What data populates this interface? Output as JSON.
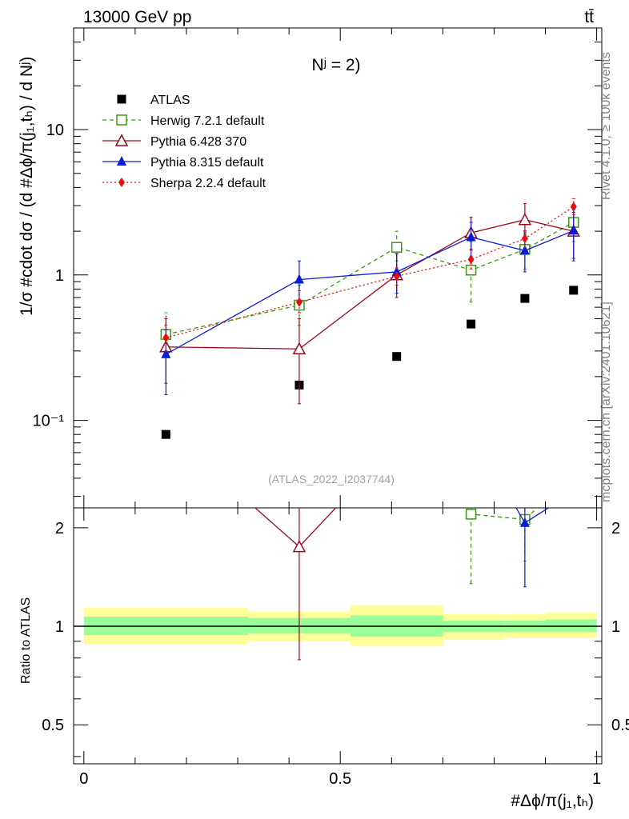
{
  "chart_data": {
    "type": "line",
    "title_left": "13000 GeV pp",
    "title_right": "tt̄",
    "inner_title": "Nʲ = 2)",
    "analysis_tag": "(ATLAS_2022_I2037744)",
    "side_top": "Rivet 4.1.0, ≥ 100k events",
    "side_bottom": "mcplots.cern.ch [arXiv:2401.10621]",
    "ylabel": "1/σ #cdot dσ / (d #Δϕ/π(j₁,tₕ) / d Nʲ)",
    "ylabel_ratio": "Ratio to ATLAS",
    "xlabel": "#Δϕ/π(j₁,tₕ)",
    "xlim": [
      -0.02,
      1.01
    ],
    "ylim": [
      0.025,
      50
    ],
    "ratio_ylim": [
      0.38,
      2.3
    ],
    "x_ticks": [
      "0",
      "0.5",
      "1"
    ],
    "y_ticks": [
      "10⁻¹",
      "1",
      "10"
    ],
    "ratio_ticks": [
      "0.5",
      "1",
      "2"
    ],
    "bin_edges": [
      0.0,
      0.32,
      0.52,
      0.7,
      0.82,
      0.9,
      1.0
    ],
    "x": [
      0.16,
      0.42,
      0.61,
      0.755,
      0.86,
      0.955
    ],
    "series": [
      {
        "name": "ATLAS",
        "marker": "square-filled",
        "color": "#000000",
        "line": "none",
        "values": [
          0.08,
          0.175,
          0.275,
          0.46,
          0.69,
          0.785
        ]
      },
      {
        "name": "Herwig 7.2.1 default",
        "marker": "square-open",
        "color": "#3a9a0f",
        "line": "dashed",
        "values": [
          0.39,
          0.62,
          1.55,
          1.08,
          1.5,
          2.3
        ],
        "err_low": [
          0.28,
          0.45,
          1.25,
          0.65,
          1.1,
          1.7
        ],
        "err_high": [
          0.55,
          0.85,
          2.0,
          1.7,
          2.0,
          3.0
        ]
      },
      {
        "name": "Pythia 6.428 370",
        "marker": "triangle-open",
        "color": "#990a1d",
        "line": "solid",
        "values": [
          0.32,
          0.31,
          1.0,
          1.95,
          2.4,
          2.0
        ],
        "err_low": [
          0.18,
          0.13,
          0.7,
          1.5,
          1.9,
          1.3
        ],
        "err_high": [
          0.5,
          0.5,
          1.4,
          2.5,
          3.1,
          2.7
        ]
      },
      {
        "name": "Pythia 8.315 default",
        "marker": "triangle-filled",
        "color": "#0a1cd4",
        "line": "solid",
        "values": [
          0.285,
          0.93,
          1.05,
          1.82,
          1.47,
          2.02
        ],
        "err_low": [
          0.15,
          0.65,
          0.75,
          1.35,
          1.05,
          1.25
        ],
        "err_high": [
          0.42,
          1.25,
          1.4,
          2.3,
          1.95,
          2.8
        ]
      },
      {
        "name": "Sherpa 2.2.4 default",
        "marker": "diamond-filled",
        "color": "#e60d0d",
        "line": "dotted",
        "values": [
          0.37,
          0.65,
          0.98,
          1.28,
          1.78,
          2.95
        ],
        "err_low": [
          0.3,
          0.55,
          0.85,
          1.1,
          1.55,
          2.6
        ],
        "err_high": [
          0.45,
          0.78,
          1.12,
          1.48,
          2.02,
          3.35
        ]
      }
    ],
    "ratio_series": [
      {
        "name": "Herwig 7.2.1 default",
        "points": [
          {
            "x": 0.755,
            "y": 2.2,
            "lo": 1.35
          },
          {
            "x": 0.86,
            "y": 2.12,
            "lo": 1.58
          }
        ]
      },
      {
        "name": "Pythia 6.428 370",
        "points": [
          {
            "x": 0.42,
            "y": 1.75,
            "lo": 0.79
          }
        ]
      },
      {
        "name": "Pythia 8.315 default",
        "points": [
          {
            "x": 0.86,
            "y": 2.07,
            "lo": 1.32
          }
        ]
      }
    ],
    "ratio_bands": {
      "yellow": [
        [
          0.88,
          1.14
        ],
        [
          0.9,
          1.11
        ],
        [
          0.87,
          1.16
        ],
        [
          0.91,
          1.09
        ],
        [
          0.92,
          1.09
        ],
        [
          0.92,
          1.1
        ]
      ],
      "green": [
        [
          0.94,
          1.07
        ],
        [
          0.95,
          1.06
        ],
        [
          0.93,
          1.08
        ],
        [
          0.96,
          1.04
        ],
        [
          0.96,
          1.04
        ],
        [
          0.96,
          1.05
        ]
      ]
    },
    "legend_position": "top-left",
    "grid": false
  }
}
